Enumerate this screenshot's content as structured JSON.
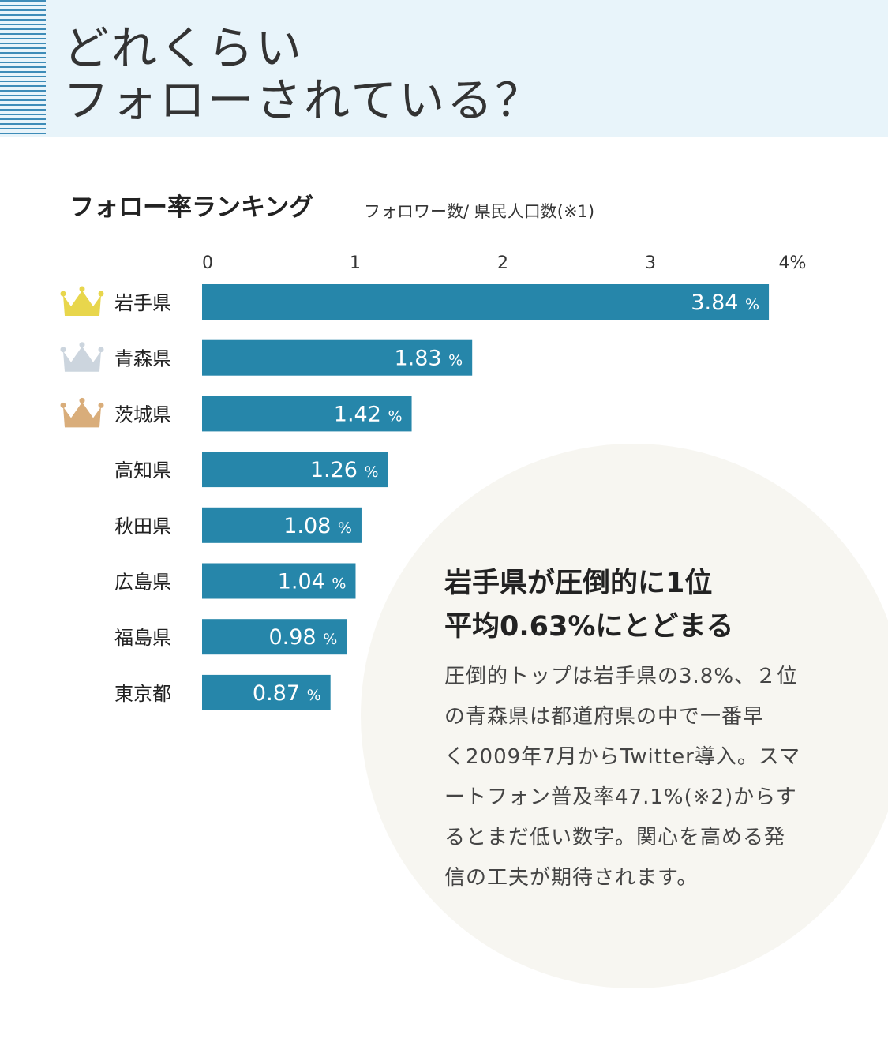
{
  "header": {
    "title_line1": "どれくらい",
    "title_line2": "フォローされている？"
  },
  "chart_data": {
    "type": "bar",
    "orientation": "horizontal",
    "title": "フォロー率ランキング",
    "subtitle": "フォロワー数/ 県民人口数(※1)",
    "categories": [
      "岩手県",
      "青森県",
      "茨城県",
      "高知県",
      "秋田県",
      "広島県",
      "福島県",
      "東京都"
    ],
    "values": [
      3.84,
      1.83,
      1.42,
      1.26,
      1.08,
      1.04,
      0.98,
      0.87
    ],
    "value_labels": [
      "3.84",
      "1.83",
      "1.42",
      "1.26",
      "1.08",
      "1.04",
      "0.98",
      "0.87"
    ],
    "unit": "%",
    "ticks": [
      "0",
      "1",
      "2",
      "3",
      "4%"
    ],
    "xlim": [
      0,
      4
    ],
    "xaxis_position": "top",
    "grid": false,
    "bar_color": "#2686aa",
    "crowns": [
      {
        "rank": 1,
        "color": "#e8d64c",
        "icon": "gold-crown-icon"
      },
      {
        "rank": 2,
        "color": "#ccd5de",
        "icon": "silver-crown-icon"
      },
      {
        "rank": 3,
        "color": "#d9ad7a",
        "icon": "bronze-crown-icon"
      }
    ]
  },
  "callout": {
    "title_line1": "岩手県が圧倒的に1位",
    "title_line2": "平均0.63%にとどまる",
    "body_lines": [
      "圧倒的トップは岩手県の3.8%、２位",
      "の青森県は都道府県の中で一番早",
      "く2009年7月からTwitter導入。スマ",
      "ートフォン普及率47.1%(※2)からす",
      "るとまだ低い数字。関心を高める発",
      "信の工夫が期待されます。"
    ]
  }
}
